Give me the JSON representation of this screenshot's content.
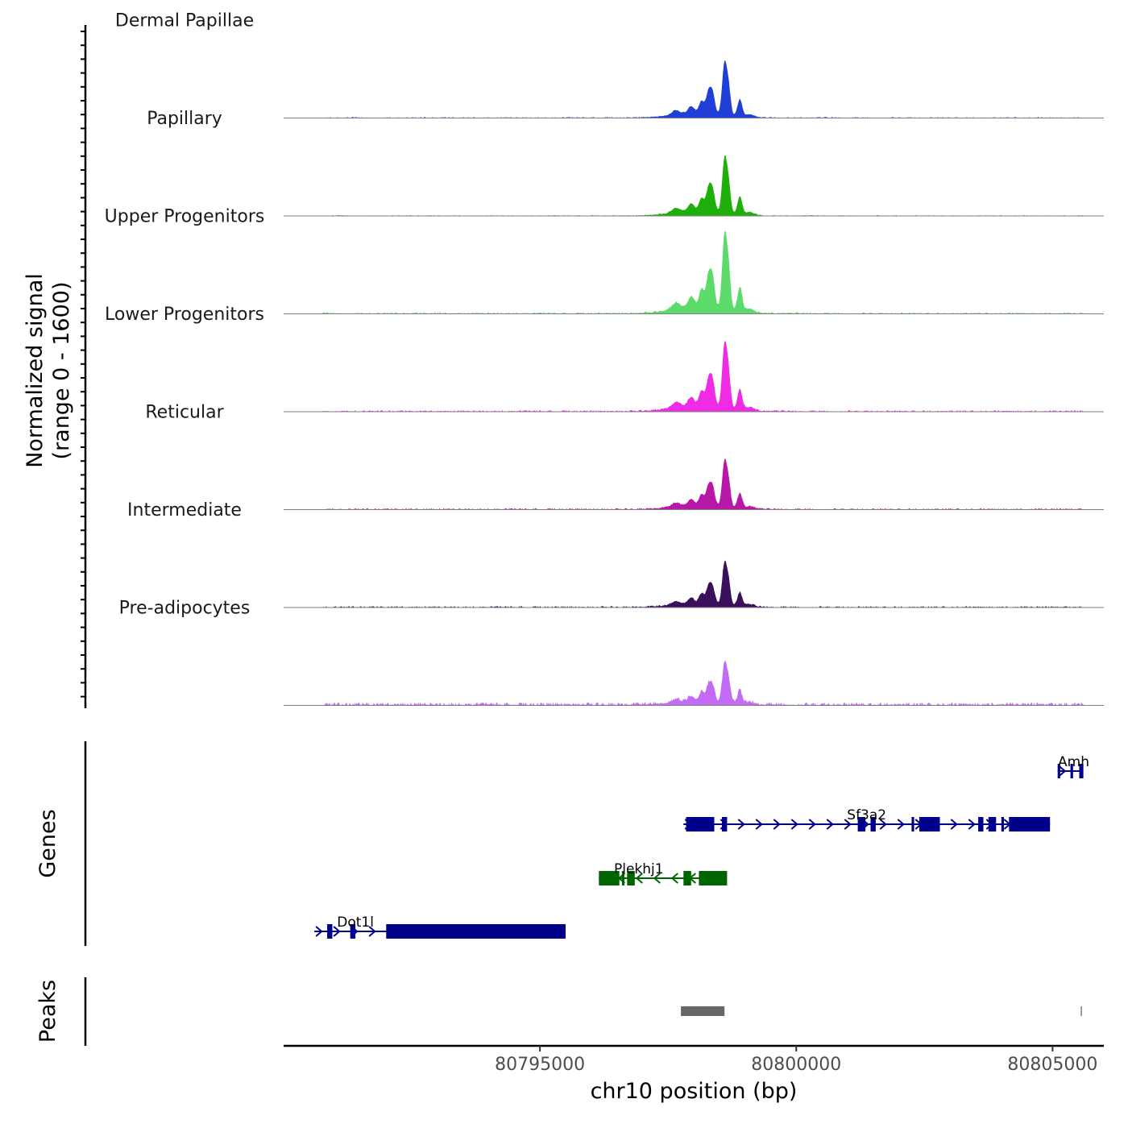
{
  "chart_data": {
    "type": "genome-browser",
    "x_axis": {
      "label": "chr10 position (bp)",
      "range": [
        80790000,
        80806000
      ],
      "ticks": [
        80795000,
        80800000,
        80805000
      ],
      "tick_labels": [
        "80795000",
        "80800000",
        "80805000"
      ]
    },
    "coverage": {
      "ylabel": [
        "Normalized signal",
        "(range 0 - 1600)"
      ],
      "range": [
        0,
        1600
      ],
      "data_start": 80790750,
      "data_end": 80805600,
      "tracks": [
        {
          "name": "Dermal Papillae",
          "color": "#1F3FD6",
          "scale": 0.9,
          "bg": 0.02
        },
        {
          "name": "Papillary",
          "color": "#1FAF0A",
          "scale": 0.95,
          "bg": 0.015
        },
        {
          "name": "Upper Progenitors",
          "color": "#5CDB6A",
          "scale": 1.3,
          "bg": 0.02
        },
        {
          "name": "Lower Progenitors",
          "color": "#F02BE6",
          "scale": 1.11,
          "bg": 0.025
        },
        {
          "name": "Reticular",
          "color": "#B818A8",
          "scale": 0.8,
          "bg": 0.03
        },
        {
          "name": "Intermediate",
          "color": "#3A0F5C",
          "scale": 0.73,
          "bg": 0.035
        },
        {
          "name": "Pre-adipocytes",
          "color": "#C36BF5",
          "scale": 0.68,
          "bg": 0.08
        }
      ]
    },
    "genes": {
      "ylabel": "Genes",
      "items": [
        {
          "name": "Amh",
          "strand": "+",
          "start": 80805100,
          "end": 80805600,
          "color": "#00008B",
          "exons": [
            [
              80805100,
              80805150
            ],
            [
              80805350,
              80805400
            ],
            [
              80805520,
              80805600
            ]
          ]
        },
        {
          "name": "Sf3a2",
          "strand": "+",
          "start": 80797800,
          "end": 80804950,
          "color": "#00008B",
          "exons": [
            [
              80797850,
              80798400
            ],
            [
              80798550,
              80798650
            ],
            [
              80801200,
              80801350
            ],
            [
              80801450,
              80801550
            ],
            [
              80802250,
              80802300
            ],
            [
              80802400,
              80802800
            ],
            [
              80803550,
              80803650
            ],
            [
              80803750,
              80803900
            ],
            [
              80804000,
              80804050
            ],
            [
              80804150,
              80804950
            ]
          ]
        },
        {
          "name": "Plekhj1",
          "strand": "-",
          "start": 80796150,
          "end": 80798650,
          "color": "#006400",
          "exons": [
            [
              80796150,
              80796550
            ],
            [
              80796600,
              80796650
            ],
            [
              80796700,
              80796850
            ],
            [
              80797800,
              80797950
            ],
            [
              80798100,
              80798650
            ]
          ]
        },
        {
          "name": "Dot1l",
          "strand": "+",
          "start": 80790600,
          "end": 80795500,
          "color": "#00008B",
          "exons": [
            [
              80790850,
              80790950
            ],
            [
              80791300,
              80791400
            ],
            [
              80792000,
              80795500
            ]
          ]
        }
      ]
    },
    "peaks": {
      "ylabel": "Peaks",
      "color": "#666666",
      "items": [
        [
          80797750,
          80798600
        ],
        [
          80805550,
          80805570
        ]
      ]
    }
  }
}
